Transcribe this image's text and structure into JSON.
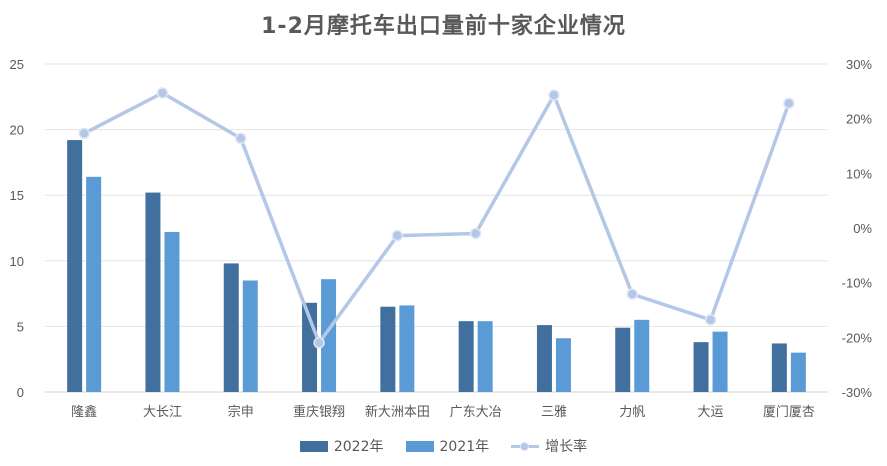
{
  "chart_data": {
    "type": "bar",
    "title": "1-2月摩托车出口量前十家企业情况",
    "categories": [
      "隆鑫",
      "大长江",
      "宗申",
      "重庆银翔",
      "新大洲本田",
      "广东大冶",
      "三雅",
      "力帆",
      "大运",
      "厦门厦杏"
    ],
    "series": [
      {
        "name": "2022年",
        "kind": "bar",
        "axis": "left",
        "color": "#41709f",
        "values": [
          19.2,
          15.2,
          9.8,
          6.8,
          6.5,
          5.4,
          5.1,
          4.9,
          3.8,
          3.7
        ]
      },
      {
        "name": "2021年",
        "kind": "bar",
        "axis": "left",
        "color": "#5b9bd5",
        "values": [
          16.4,
          12.2,
          8.5,
          8.6,
          6.6,
          5.4,
          4.1,
          5.5,
          4.6,
          3.0
        ]
      },
      {
        "name": "增长率",
        "kind": "line",
        "axis": "right",
        "color": "#b4c7e7",
        "values": [
          17.3,
          24.7,
          16.4,
          -21.0,
          -1.4,
          -1.0,
          24.3,
          -12.1,
          -16.8,
          22.8
        ]
      }
    ],
    "y_left": {
      "min": 0,
      "max": 25,
      "ticks": [
        "0",
        "5",
        "10",
        "15",
        "20",
        "25"
      ]
    },
    "y_right": {
      "min": -30,
      "max": 30,
      "ticks": [
        "-30%",
        "-20%",
        "-10%",
        "0%",
        "10%",
        "20%",
        "30%"
      ]
    },
    "grid": true,
    "legend": "bottom"
  }
}
